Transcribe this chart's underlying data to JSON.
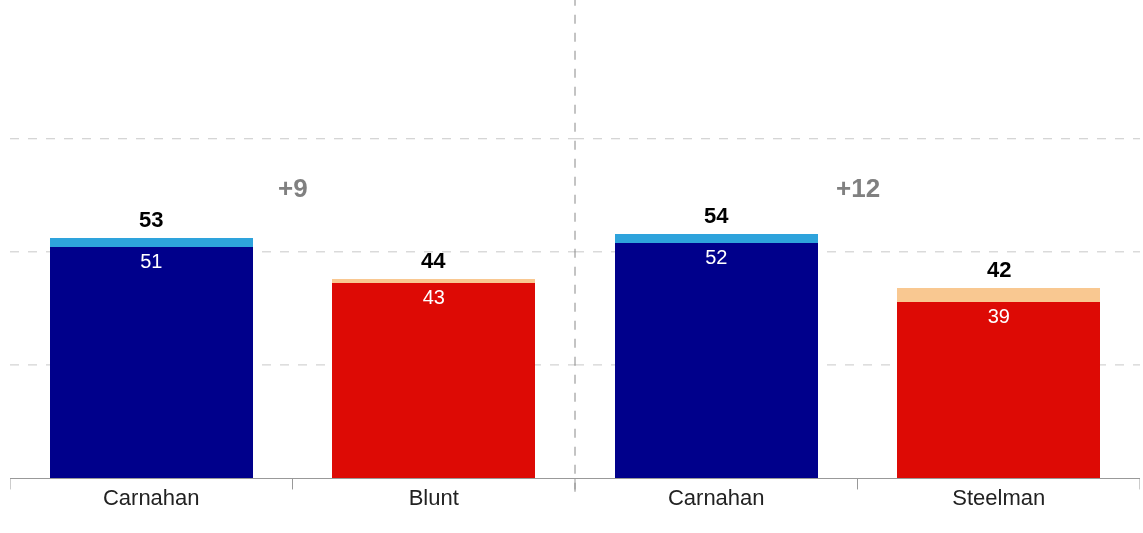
{
  "chart_data": [
    {
      "type": "bar",
      "stacked": true,
      "categories": [
        "Carnahan",
        "Blunt"
      ],
      "series": [
        {
          "colors": [
            "#00008b",
            "#dd0a05"
          ],
          "values": [
            51,
            43
          ],
          "value_labels": [
            "51",
            "43"
          ]
        },
        {
          "colors": [
            "#2ea3dc",
            "#f9c891"
          ],
          "values": [
            2,
            1
          ]
        }
      ],
      "totals": [
        "53",
        "44"
      ],
      "annotations": [
        "+9"
      ],
      "ref_lines": [
        {
          "axis": "y",
          "value": 25,
          "color": "#c8c8c8",
          "line_style": "dashed"
        },
        {
          "axis": "y",
          "value": 50,
          "color": "#c8c8c8",
          "line_style": "dashed"
        },
        {
          "axis": "y",
          "value": 75,
          "color": "#c8c8c8",
          "line_style": "dashed"
        }
      ],
      "tick_labels": "x"
    },
    {
      "type": "bar",
      "stacked": true,
      "categories": [
        "Carnahan",
        "Steelman"
      ],
      "series": [
        {
          "colors": [
            "#00008b",
            "#dd0a05"
          ],
          "values": [
            52,
            39
          ],
          "value_labels": [
            "52",
            "39"
          ]
        },
        {
          "colors": [
            "#2ea3dc",
            "#f9c891"
          ],
          "values": [
            2,
            3
          ]
        }
      ],
      "totals": [
        "54",
        "42"
      ],
      "annotations": [
        "+12"
      ],
      "ref_lines": [
        {
          "axis": "y",
          "value": 25,
          "color": "#c8c8c8",
          "line_style": "dashed"
        },
        {
          "axis": "y",
          "value": 50,
          "color": "#c8c8c8",
          "line_style": "dashed"
        },
        {
          "axis": "y",
          "value": 75,
          "color": "#c8c8c8",
          "line_style": "dashed"
        }
      ],
      "tick_labels": "x"
    }
  ]
}
